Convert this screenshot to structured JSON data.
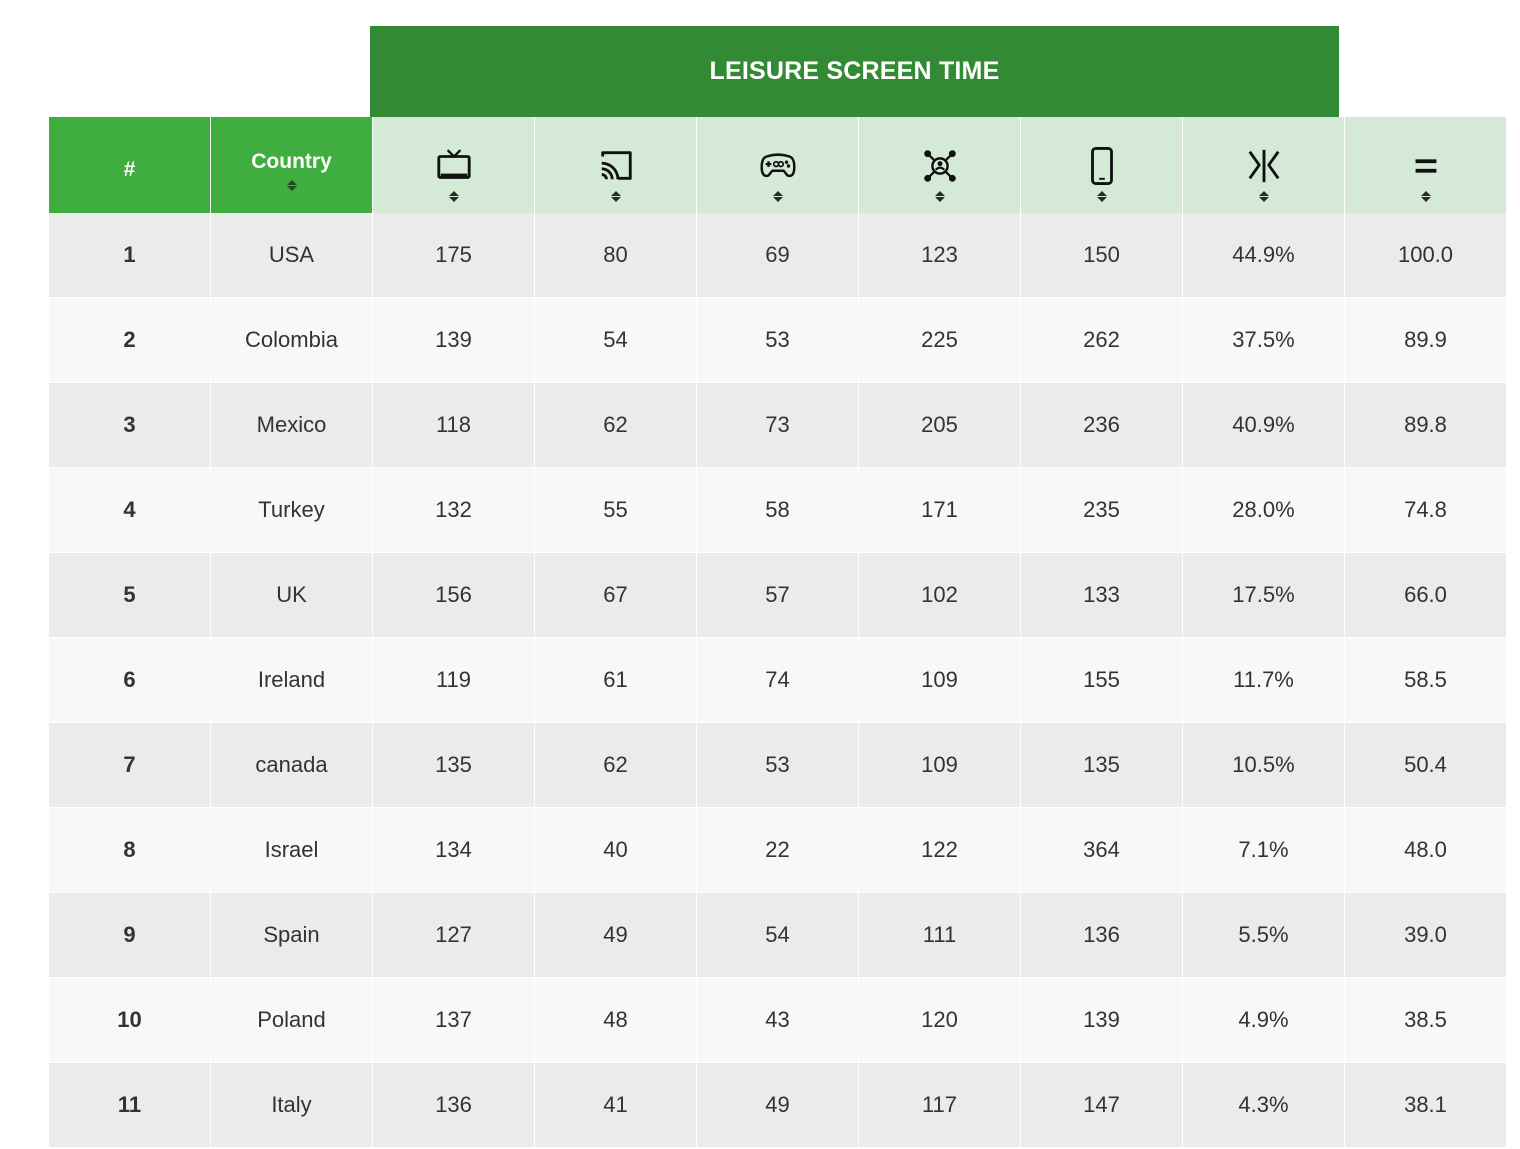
{
  "banner": {
    "title": "LEISURE SCREEN TIME"
  },
  "header": {
    "rank_label": "#",
    "country_label": "Country",
    "columns": [
      {
        "icon": "tv-icon"
      },
      {
        "icon": "cast-icon"
      },
      {
        "icon": "gamepad-icon"
      },
      {
        "icon": "social-network-icon"
      },
      {
        "icon": "smartphone-icon"
      },
      {
        "icon": "growth-icon"
      },
      {
        "icon": "equals-icon"
      }
    ]
  },
  "rows": [
    {
      "rank": "1",
      "country": "USA",
      "c1": "175",
      "c2": "80",
      "c3": "69",
      "c4": "123",
      "c5": "150",
      "c6": "44.9%",
      "c7": "100.0"
    },
    {
      "rank": "2",
      "country": "Colombia",
      "c1": "139",
      "c2": "54",
      "c3": "53",
      "c4": "225",
      "c5": "262",
      "c6": "37.5%",
      "c7": "89.9"
    },
    {
      "rank": "3",
      "country": "Mexico",
      "c1": "118",
      "c2": "62",
      "c3": "73",
      "c4": "205",
      "c5": "236",
      "c6": "40.9%",
      "c7": "89.8"
    },
    {
      "rank": "4",
      "country": "Turkey",
      "c1": "132",
      "c2": "55",
      "c3": "58",
      "c4": "171",
      "c5": "235",
      "c6": "28.0%",
      "c7": "74.8"
    },
    {
      "rank": "5",
      "country": "UK",
      "c1": "156",
      "c2": "67",
      "c3": "57",
      "c4": "102",
      "c5": "133",
      "c6": "17.5%",
      "c7": "66.0"
    },
    {
      "rank": "6",
      "country": "Ireland",
      "c1": "119",
      "c2": "61",
      "c3": "74",
      "c4": "109",
      "c5": "155",
      "c6": "11.7%",
      "c7": "58.5"
    },
    {
      "rank": "7",
      "country": "canada",
      "c1": "135",
      "c2": "62",
      "c3": "53",
      "c4": "109",
      "c5": "135",
      "c6": "10.5%",
      "c7": "50.4"
    },
    {
      "rank": "8",
      "country": "Israel",
      "c1": "134",
      "c2": "40",
      "c3": "22",
      "c4": "122",
      "c5": "364",
      "c6": "7.1%",
      "c7": "48.0"
    },
    {
      "rank": "9",
      "country": "Spain",
      "c1": "127",
      "c2": "49",
      "c3": "54",
      "c4": "111",
      "c5": "136",
      "c6": "5.5%",
      "c7": "39.0"
    },
    {
      "rank": "10",
      "country": "Poland",
      "c1": "137",
      "c2": "48",
      "c3": "43",
      "c4": "120",
      "c5": "139",
      "c6": "4.9%",
      "c7": "38.5"
    },
    {
      "rank": "11",
      "country": "Italy",
      "c1": "136",
      "c2": "41",
      "c3": "49",
      "c4": "117",
      "c5": "147",
      "c6": "4.3%",
      "c7": "38.1"
    }
  ],
  "colors": {
    "banner_bg": "#328a34",
    "header_green": "#3fad3f",
    "header_light": "#d4ead7",
    "row_odd": "#ebebeb",
    "row_even": "#f8f8f8"
  }
}
